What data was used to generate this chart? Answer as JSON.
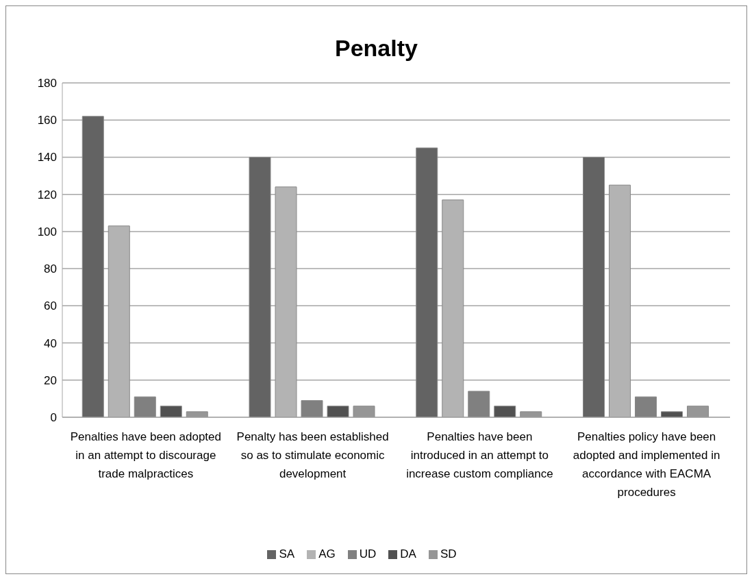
{
  "chart_data": {
    "type": "bar",
    "title": "Penalty",
    "categories": [
      "Penalties have been adopted in an attempt to discourage trade malpractices",
      "Penalty has been established so as  to stimulate economic development",
      "Penalties have been introduced in an attempt  to increase custom compliance",
      "Penalties policy have been adopted and implemented in accordance with EACMA procedures"
    ],
    "series": [
      {
        "name": "SA",
        "color": "#636363",
        "values": [
          162,
          140,
          145,
          140
        ]
      },
      {
        "name": "AG",
        "color": "#b3b3b3",
        "values": [
          103,
          124,
          117,
          125
        ]
      },
      {
        "name": "UD",
        "color": "#808080",
        "values": [
          11,
          9,
          14,
          11
        ]
      },
      {
        "name": "DA",
        "color": "#515151",
        "values": [
          6,
          6,
          6,
          3
        ]
      },
      {
        "name": "SD",
        "color": "#969696",
        "values": [
          3,
          6,
          3,
          6
        ]
      }
    ],
    "ylim": [
      0,
      180
    ],
    "yticks": [
      0,
      20,
      40,
      60,
      80,
      100,
      120,
      140,
      160,
      180
    ],
    "grid": "y",
    "legend": "bottom"
  }
}
